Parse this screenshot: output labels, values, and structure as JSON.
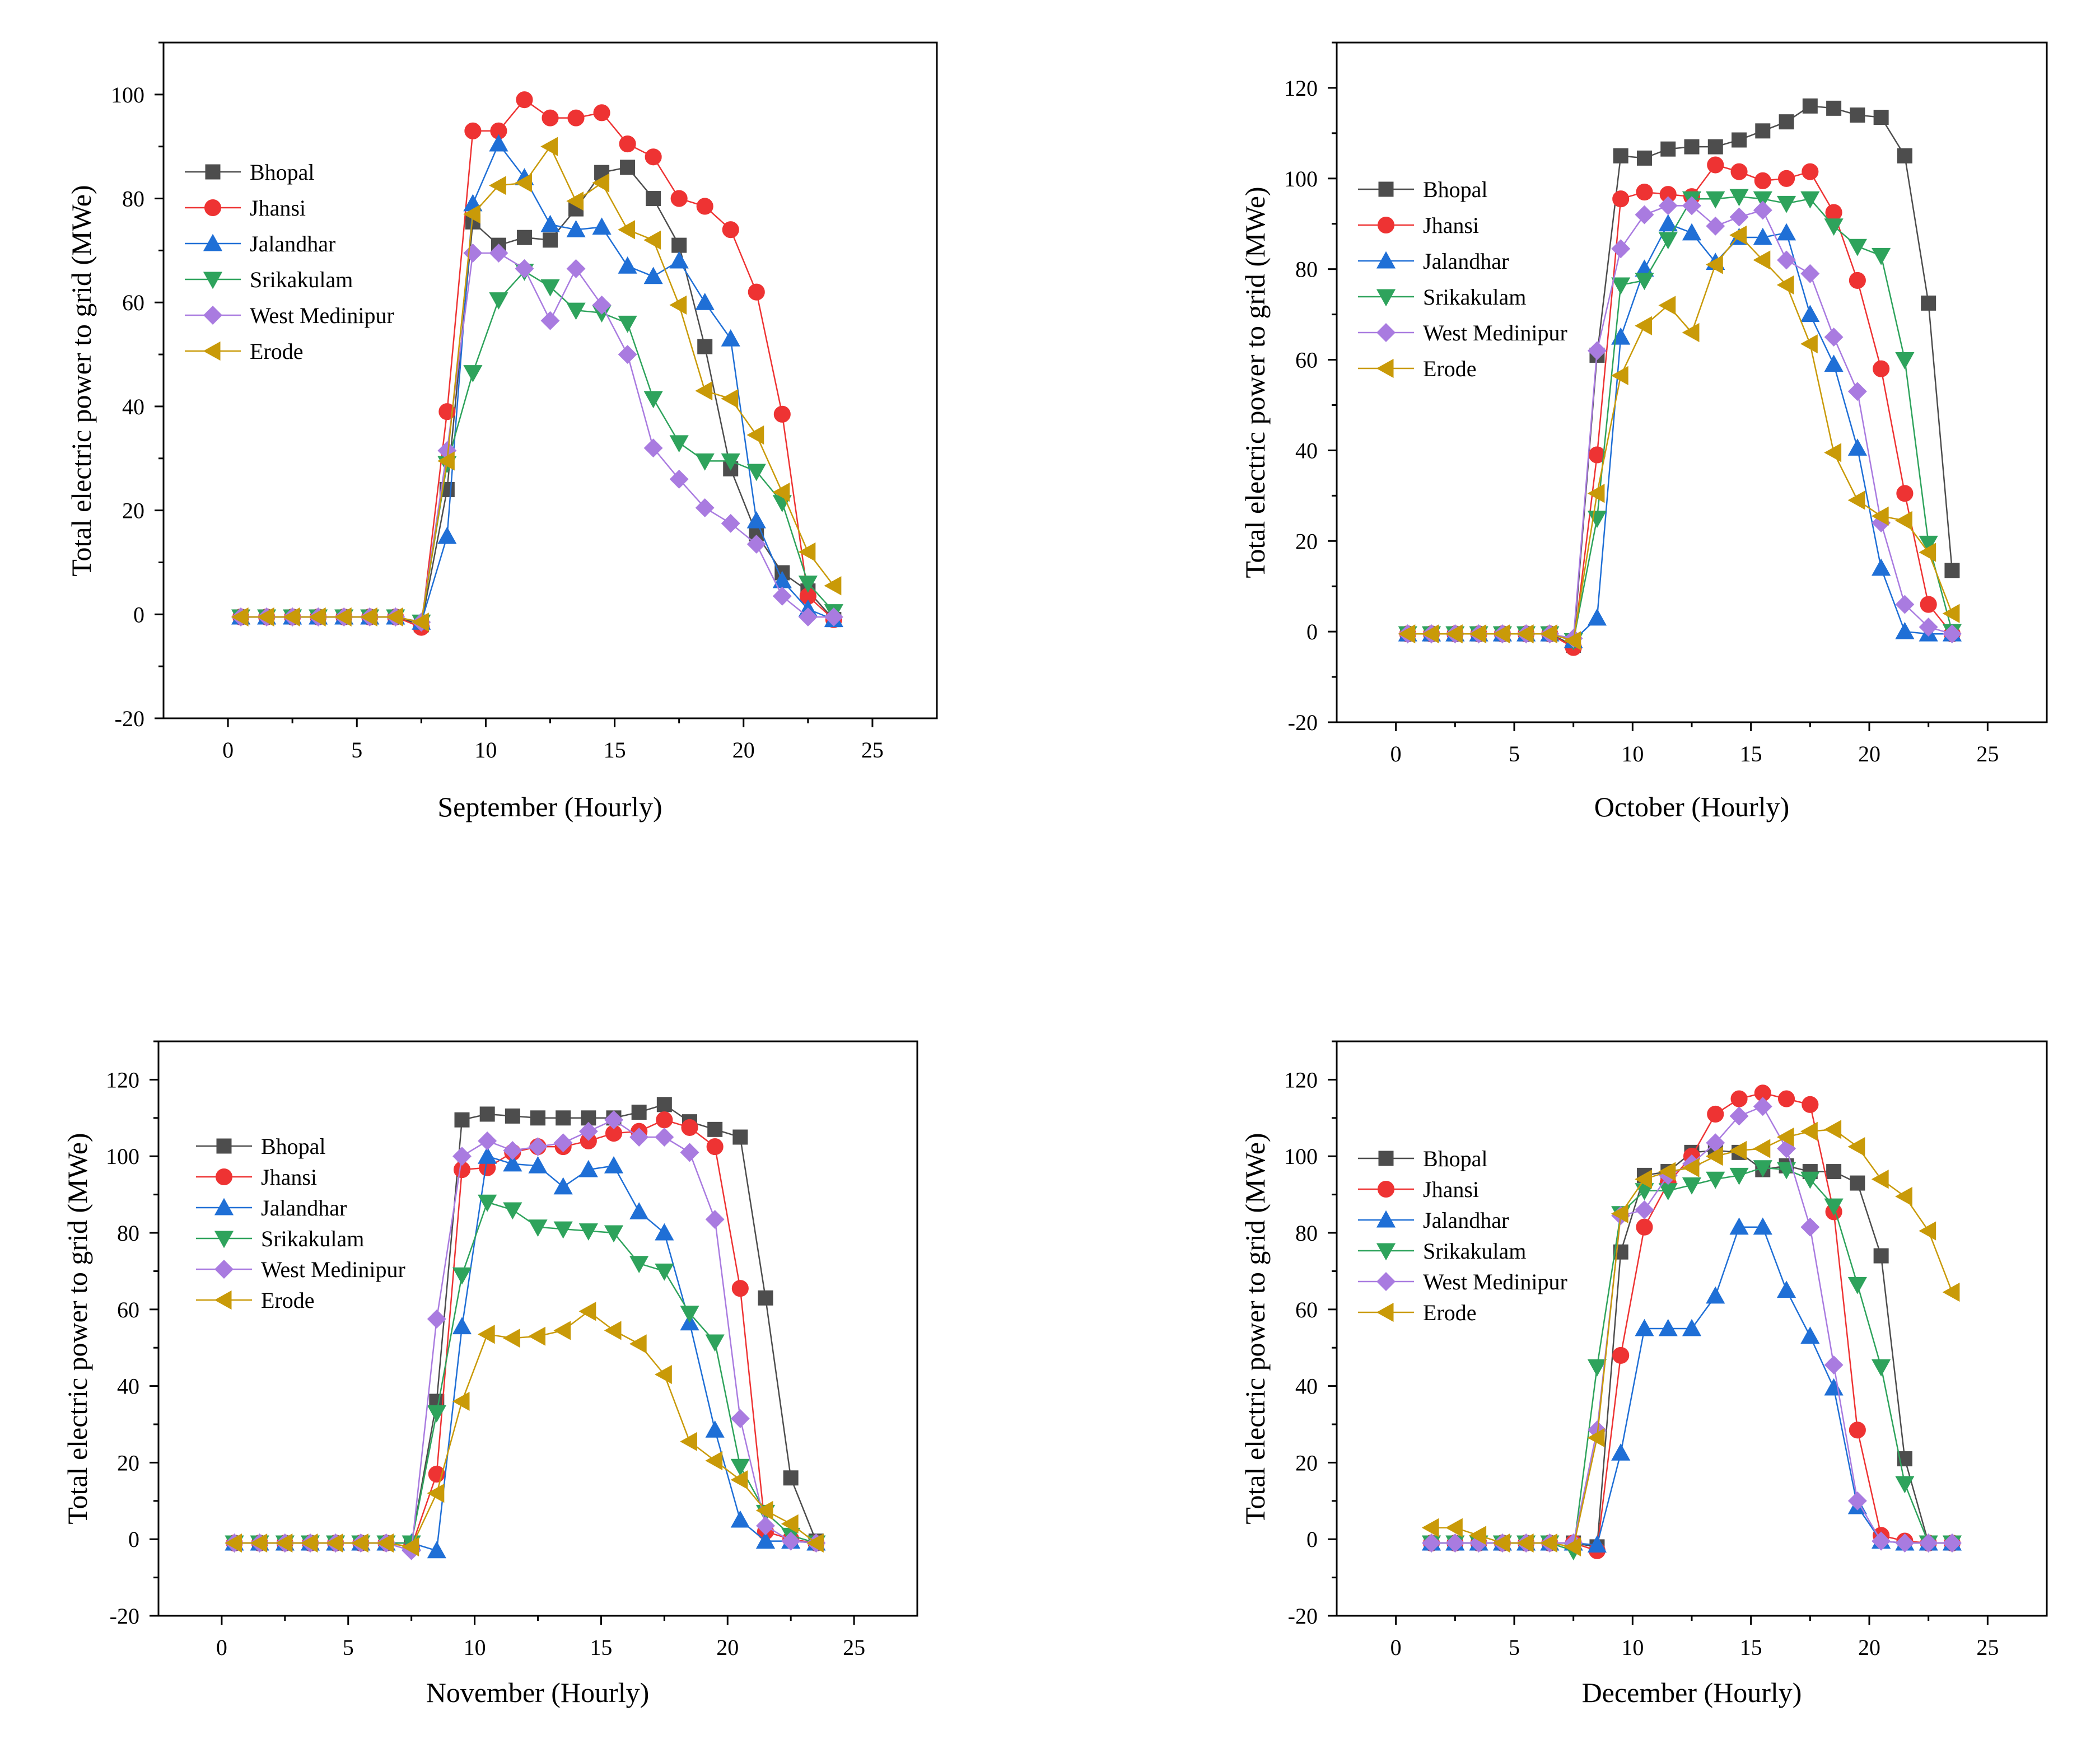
{
  "series_colors": {
    "Bhopal": "#4d4d4d",
    "Jhansi": "#ee3333",
    "Jalandhar": "#1f6fd6",
    "Srikakulam": "#2ea35c",
    "West Medinipur": "#a97be0",
    "Erode": "#c99a08"
  },
  "series_markers": {
    "Bhopal": "square",
    "Jhansi": "circle",
    "Jalandhar": "triangle-up",
    "Srikakulam": "triangle-down",
    "West Medinipur": "diamond",
    "Erode": "triangle-left"
  },
  "chart_data": [
    {
      "type": "line",
      "title": "",
      "xlabel": "September (Hourly)",
      "ylabel": "Total electric power to grid (MWe)",
      "xlim": [
        -2.5,
        27.5
      ],
      "ylim": [
        -20,
        110
      ],
      "xticks": [
        0,
        5,
        10,
        15,
        20,
        25
      ],
      "yticks": [
        -20,
        0,
        20,
        40,
        60,
        80,
        100
      ],
      "legend": "upper-left",
      "x": [
        0.5,
        1.5,
        2.5,
        3.5,
        4.5,
        5.5,
        6.5,
        7.5,
        8.5,
        9.5,
        10.5,
        11.5,
        12.5,
        13.5,
        14.5,
        15.5,
        16.5,
        17.5,
        18.5,
        19.5,
        20.5,
        21.5,
        22.5,
        23.5
      ],
      "series": [
        {
          "name": "Bhopal",
          "values": [
            -0.5,
            -0.5,
            -0.5,
            -0.5,
            -0.5,
            -0.5,
            -0.5,
            -2,
            24,
            75.5,
            71,
            72.5,
            72,
            78,
            85,
            86,
            80,
            71,
            51.5,
            28,
            15.5,
            8,
            4.5,
            -1
          ]
        },
        {
          "name": "Jhansi",
          "values": [
            -0.5,
            -0.5,
            -0.5,
            -0.5,
            -0.5,
            -0.5,
            -0.5,
            -2.5,
            39,
            93,
            93,
            99,
            95.5,
            95.5,
            96.5,
            90.5,
            88,
            80,
            78.5,
            74,
            62,
            38.5,
            3.5,
            -1
          ]
        },
        {
          "name": "Jalandhar",
          "values": [
            -0.5,
            -0.5,
            -0.5,
            -0.5,
            -0.5,
            -0.5,
            -0.5,
            -1.5,
            15,
            79,
            90.5,
            84,
            75,
            74,
            74.5,
            67,
            65,
            68,
            60,
            53,
            18,
            6.5,
            1,
            -1
          ]
        },
        {
          "name": "Srikakulam",
          "values": [
            -0.5,
            -0.5,
            -0.5,
            -0.5,
            -0.5,
            -0.5,
            -0.5,
            -1.5,
            29,
            46.5,
            60.5,
            66,
            63,
            58.5,
            58,
            56,
            41.5,
            33,
            29.5,
            29.5,
            27.5,
            21.5,
            6,
            0.5
          ]
        },
        {
          "name": "West Medinipur",
          "values": [
            -0.5,
            -0.5,
            -0.5,
            -0.5,
            -0.5,
            -0.5,
            -0.5,
            -1.5,
            31.5,
            69.5,
            69.5,
            66.5,
            56.5,
            66.5,
            59.5,
            50,
            32,
            26,
            20.5,
            17.5,
            13.5,
            3.5,
            -0.5,
            -0.5
          ]
        },
        {
          "name": "Erode",
          "values": [
            -0.5,
            -0.5,
            -0.5,
            -0.5,
            -0.5,
            -0.5,
            -0.5,
            -1.5,
            29.5,
            77,
            82.5,
            83,
            90,
            79.5,
            83,
            74,
            72,
            59.5,
            43,
            41.5,
            34.5,
            23.5,
            12,
            5.5
          ]
        }
      ]
    },
    {
      "type": "line",
      "title": "",
      "xlabel": "October (Hourly)",
      "ylabel": "Total electric power to grid (MWe)",
      "xlim": [
        -2.5,
        27.5
      ],
      "ylim": [
        -20,
        130
      ],
      "xticks": [
        0,
        5,
        10,
        15,
        20,
        25
      ],
      "yticks": [
        -20,
        0,
        20,
        40,
        60,
        80,
        100,
        120
      ],
      "legend": "upper-left",
      "x": [
        0.5,
        1.5,
        2.5,
        3.5,
        4.5,
        5.5,
        6.5,
        7.5,
        8.5,
        9.5,
        10.5,
        11.5,
        12.5,
        13.5,
        14.5,
        15.5,
        16.5,
        17.5,
        18.5,
        19.5,
        20.5,
        21.5,
        22.5,
        23.5
      ],
      "series": [
        {
          "name": "Bhopal",
          "values": [
            -0.5,
            -0.5,
            -0.5,
            -0.5,
            -0.5,
            -0.5,
            -0.5,
            -3,
            61,
            105,
            104.5,
            106.5,
            107,
            107,
            108.5,
            110.5,
            112.5,
            116,
            115.5,
            114,
            113.5,
            105,
            72.5,
            13.5
          ]
        },
        {
          "name": "Jhansi",
          "values": [
            -0.5,
            -0.5,
            -0.5,
            -0.5,
            -0.5,
            -0.5,
            -0.5,
            -3.5,
            39,
            95.5,
            97,
            96.5,
            96,
            103,
            101.5,
            99.5,
            100,
            101.5,
            92.5,
            77.5,
            58,
            30.5,
            6,
            -0.5
          ]
        },
        {
          "name": "Jalandhar",
          "values": [
            -0.5,
            -0.5,
            -0.5,
            -0.5,
            -0.5,
            -0.5,
            -0.5,
            -2,
            3,
            65,
            80,
            90,
            88,
            81.5,
            87,
            87,
            88,
            70,
            59,
            40.5,
            14,
            0,
            -0.5,
            -0.5
          ]
        },
        {
          "name": "Srikakulam",
          "values": [
            -0.5,
            -0.5,
            -0.5,
            -0.5,
            -0.5,
            -0.5,
            -0.5,
            -2,
            25,
            76.5,
            77.5,
            86.5,
            95.5,
            95.5,
            96,
            95.5,
            94.5,
            95.5,
            89.5,
            85,
            83,
            60,
            19.5,
            0
          ]
        },
        {
          "name": "West Medinipur",
          "values": [
            -0.5,
            -0.5,
            -0.5,
            -0.5,
            -0.5,
            -0.5,
            -0.5,
            -1.5,
            62,
            84.5,
            92,
            94,
            94,
            89.5,
            91.5,
            93,
            82,
            79,
            65,
            53,
            24,
            6,
            1,
            -0.5
          ]
        },
        {
          "name": "Erode",
          "values": [
            -0.5,
            -0.5,
            -0.5,
            -0.5,
            -0.5,
            -0.5,
            -0.5,
            -2,
            30.5,
            56.5,
            67.5,
            72,
            66,
            81,
            87.5,
            82,
            76.5,
            63.5,
            39.5,
            29,
            25.5,
            24.5,
            17.5,
            4
          ]
        }
      ]
    },
    {
      "type": "line",
      "title": "",
      "xlabel": "November (Hourly)",
      "ylabel": "Total electric power to grid (MWe)",
      "xlim": [
        -2.5,
        27.5
      ],
      "ylim": [
        -20,
        130
      ],
      "xticks": [
        0,
        5,
        10,
        15,
        20,
        25
      ],
      "yticks": [
        -20,
        0,
        20,
        40,
        60,
        80,
        100,
        120
      ],
      "legend": "upper-left",
      "x": [
        0.5,
        1.5,
        2.5,
        3.5,
        4.5,
        5.5,
        6.5,
        7.5,
        8.5,
        9.5,
        10.5,
        11.5,
        12.5,
        13.5,
        14.5,
        15.5,
        16.5,
        17.5,
        18.5,
        19.5,
        20.5,
        21.5,
        22.5,
        23.5
      ],
      "series": [
        {
          "name": "Bhopal",
          "values": [
            -1,
            -1,
            -1,
            -1,
            -1,
            -1,
            -1,
            -1,
            36,
            109.5,
            111,
            110.5,
            110,
            110,
            110,
            110,
            111.5,
            113.5,
            109,
            107,
            105,
            63,
            16,
            -0.5
          ]
        },
        {
          "name": "Jhansi",
          "values": [
            -1,
            -1,
            -1,
            -1,
            -1,
            -1,
            -1,
            -2,
            17,
            96.5,
            97,
            101,
            102.5,
            102.5,
            104,
            106,
            106.5,
            109.5,
            107.5,
            102.5,
            65.5,
            2,
            0,
            -1
          ]
        },
        {
          "name": "Jalandhar",
          "values": [
            -1,
            -1,
            -1,
            -1,
            -1,
            -1,
            -1,
            -1,
            -3,
            55.5,
            100,
            98,
            97.5,
            92,
            96.5,
            97.5,
            85.5,
            80,
            56.5,
            28.5,
            5,
            -0.5,
            -0.5,
            -1
          ]
        },
        {
          "name": "Srikakulam",
          "values": [
            -1,
            -1,
            -1,
            -1,
            -1,
            -1,
            -1,
            -1,
            33,
            69,
            88,
            86,
            81.5,
            81,
            80.5,
            80,
            72,
            70,
            59,
            51.5,
            19,
            7,
            1,
            -1
          ]
        },
        {
          "name": "West Medinipur",
          "values": [
            -1,
            -1,
            -1,
            -1,
            -1,
            -1,
            -1,
            -3,
            57.5,
            100,
            104,
            101.5,
            102.5,
            103.5,
            106.5,
            109.5,
            105,
            105,
            101,
            83.5,
            31.5,
            3.5,
            -0.5,
            -1
          ]
        },
        {
          "name": "Erode",
          "values": [
            -1,
            -1,
            -1,
            -1,
            -1,
            -1,
            -1,
            -2,
            12,
            36,
            53.5,
            52.5,
            53,
            54.5,
            59.5,
            54.5,
            51,
            43,
            25.5,
            20.5,
            15.5,
            7.5,
            4,
            -1
          ]
        }
      ]
    },
    {
      "type": "line",
      "title": "",
      "xlabel": "December (Hourly)",
      "ylabel": "Total electric power to grid (MWe)",
      "xlim": [
        -2.5,
        27.5
      ],
      "ylim": [
        -20,
        130
      ],
      "xticks": [
        0,
        5,
        10,
        15,
        20,
        25
      ],
      "yticks": [
        -20,
        0,
        20,
        40,
        60,
        80,
        100,
        120
      ],
      "legend": "upper-left",
      "x": [
        1.5,
        2.5,
        3.5,
        4.5,
        5.5,
        6.5,
        7.5,
        8.5,
        9.5,
        10.5,
        11.5,
        12.5,
        13.5,
        14.5,
        15.5,
        16.5,
        17.5,
        18.5,
        19.5,
        20.5,
        21.5,
        22.5,
        23.5
      ],
      "series": [
        {
          "name": "Bhopal",
          "values": [
            -1,
            -1,
            -1,
            -1,
            -1,
            -1,
            -1,
            -2,
            75,
            95,
            96,
            101,
            101.5,
            101,
            96.5,
            97.5,
            96,
            96,
            93,
            74,
            21,
            -1,
            -1
          ]
        },
        {
          "name": "Jhansi",
          "values": [
            -1,
            -1,
            -1,
            -1,
            -1,
            -1,
            -1,
            -3,
            48,
            81.5,
            93,
            100,
            111,
            115,
            116.5,
            115,
            113.5,
            85.5,
            28.5,
            1,
            -0.5,
            -1,
            -1
          ]
        },
        {
          "name": "Jalandhar",
          "values": [
            -1,
            -1,
            -1,
            -1,
            -1,
            -1,
            -1,
            -1.5,
            22.5,
            55,
            55,
            55,
            63.5,
            81.5,
            81.5,
            65,
            53,
            39.5,
            8.5,
            -0.5,
            -1,
            -1,
            -1
          ]
        },
        {
          "name": "Srikakulam",
          "values": [
            -1,
            -1,
            -1,
            -1,
            -1,
            -1,
            -3,
            45,
            85,
            91,
            91,
            92.5,
            94,
            95,
            97,
            96.5,
            94,
            87,
            66.5,
            45,
            14.5,
            -1,
            -1
          ]
        },
        {
          "name": "West Medinipur",
          "values": [
            -1,
            -1,
            -1,
            -1,
            -1,
            -1,
            -1,
            28.5,
            84.5,
            86,
            95,
            98,
            103.5,
            110.5,
            113,
            102,
            81.5,
            45.5,
            10,
            -0.5,
            -1,
            -1,
            -1
          ]
        },
        {
          "name": "Erode",
          "values": [
            3,
            3,
            1,
            -1,
            -1,
            -1,
            -2,
            26.5,
            85,
            94,
            96,
            97,
            100,
            101.5,
            102,
            105,
            106.5,
            107,
            102.5,
            94,
            89.5,
            80.5,
            64.5
          ]
        }
      ]
    }
  ]
}
